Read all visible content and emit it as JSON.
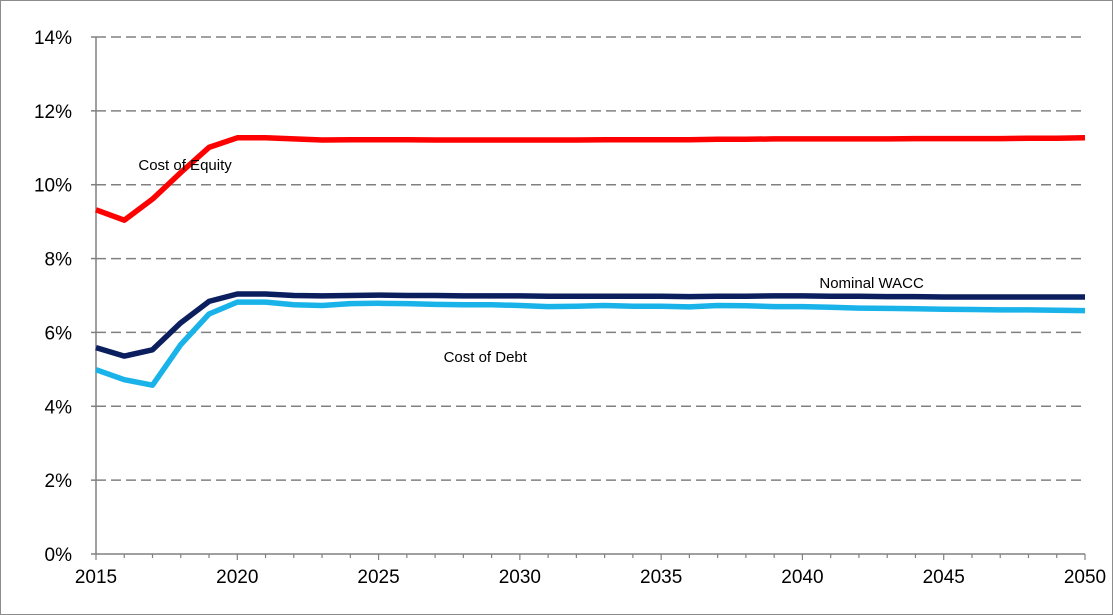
{
  "chart_data": {
    "type": "line",
    "title": "",
    "xlabel": "",
    "ylabel": "",
    "xlim": [
      2015,
      2050
    ],
    "ylim": [
      0,
      14
    ],
    "x_ticks": [
      2015,
      2020,
      2025,
      2030,
      2035,
      2040,
      2045,
      2050
    ],
    "x_tick_labels": [
      "2015",
      "2020",
      "2025",
      "2030",
      "2035",
      "2040",
      "2045",
      "2050"
    ],
    "y_ticks": [
      0,
      2,
      4,
      6,
      8,
      10,
      12,
      14
    ],
    "y_tick_labels": [
      "0%",
      "2%",
      "4%",
      "6%",
      "8%",
      "10%",
      "12%",
      "14%"
    ],
    "grid": "horizontal dashed",
    "legend": "none (series labelled directly on plot)",
    "x": [
      2015,
      2016,
      2017,
      2018,
      2019,
      2020,
      2021,
      2022,
      2023,
      2024,
      2025,
      2026,
      2027,
      2028,
      2029,
      2030,
      2031,
      2032,
      2033,
      2034,
      2035,
      2036,
      2037,
      2038,
      2039,
      2040,
      2041,
      2042,
      2043,
      2044,
      2045,
      2046,
      2047,
      2048,
      2049,
      2050
    ],
    "series": [
      {
        "name": "Cost of Equity",
        "color": "#ff0000",
        "label_at": [
          2016.5,
          10.4
        ],
        "values": [
          9.32,
          9.04,
          9.61,
          10.33,
          11.01,
          11.27,
          11.27,
          11.24,
          11.21,
          11.22,
          11.22,
          11.22,
          11.21,
          11.21,
          11.21,
          11.21,
          11.21,
          11.21,
          11.22,
          11.22,
          11.22,
          11.22,
          11.23,
          11.23,
          11.24,
          11.24,
          11.24,
          11.24,
          11.24,
          11.25,
          11.25,
          11.25,
          11.25,
          11.26,
          11.26,
          11.27
        ]
      },
      {
        "name": "Nominal WACC",
        "color": "#0b1f5e",
        "label_at": [
          2040.6,
          7.2
        ],
        "values": [
          5.59,
          5.36,
          5.53,
          6.26,
          6.84,
          7.04,
          7.04,
          7.0,
          6.99,
          7.0,
          7.01,
          7.0,
          7.0,
          6.99,
          6.99,
          6.99,
          6.98,
          6.98,
          6.98,
          6.98,
          6.98,
          6.97,
          6.98,
          6.98,
          6.99,
          6.99,
          6.98,
          6.98,
          6.97,
          6.97,
          6.96,
          6.96,
          6.96,
          6.96,
          6.96,
          6.96
        ]
      },
      {
        "name": "Cost of Debt",
        "color": "#19b3ea",
        "label_at": [
          2027.3,
          5.2
        ],
        "values": [
          4.99,
          4.72,
          4.57,
          5.67,
          6.5,
          6.82,
          6.82,
          6.75,
          6.73,
          6.78,
          6.79,
          6.78,
          6.76,
          6.75,
          6.75,
          6.73,
          6.7,
          6.71,
          6.73,
          6.71,
          6.71,
          6.69,
          6.73,
          6.72,
          6.7,
          6.7,
          6.68,
          6.66,
          6.65,
          6.64,
          6.63,
          6.62,
          6.61,
          6.61,
          6.6,
          6.59
        ]
      }
    ]
  }
}
